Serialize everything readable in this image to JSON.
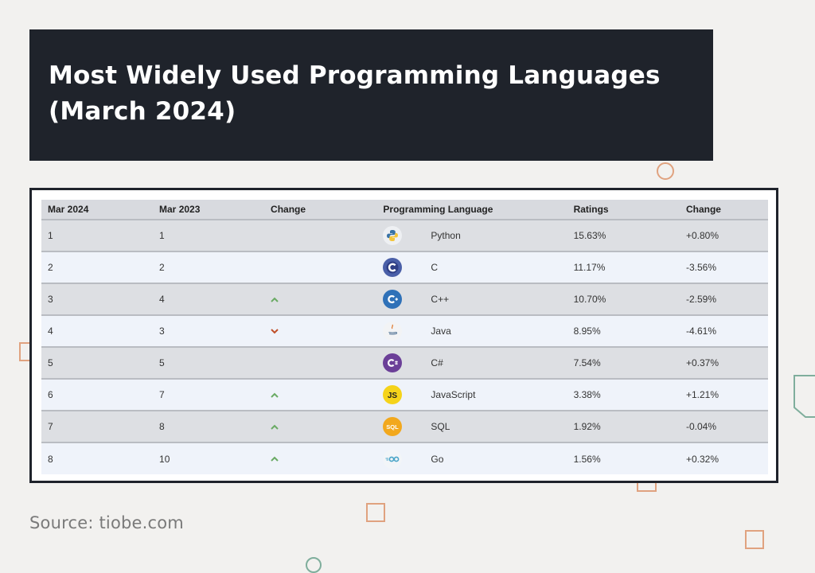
{
  "title": {
    "line1": "Most Widely Used Programming Languages",
    "line2": "(March 2024)"
  },
  "table": {
    "headers": [
      "Mar 2024",
      "Mar 2023",
      "Change",
      "Programming Language",
      "Ratings",
      "Change"
    ],
    "rows": [
      {
        "rank_2024": "1",
        "rank_2023": "1",
        "trend": "none",
        "icon": "python-icon",
        "language": "Python",
        "rating": "15.63%",
        "change": "+0.80%"
      },
      {
        "rank_2024": "2",
        "rank_2023": "2",
        "trend": "none",
        "icon": "c-icon",
        "language": "C",
        "rating": "11.17%",
        "change": "-3.56%"
      },
      {
        "rank_2024": "3",
        "rank_2023": "4",
        "trend": "up",
        "icon": "cpp-icon",
        "language": "C++",
        "rating": "10.70%",
        "change": "-2.59%"
      },
      {
        "rank_2024": "4",
        "rank_2023": "3",
        "trend": "down",
        "icon": "java-icon",
        "language": "Java",
        "rating": "8.95%",
        "change": "-4.61%"
      },
      {
        "rank_2024": "5",
        "rank_2023": "5",
        "trend": "none",
        "icon": "csharp-icon",
        "language": "C#",
        "rating": "7.54%",
        "change": "+0.37%"
      },
      {
        "rank_2024": "6",
        "rank_2023": "7",
        "trend": "up",
        "icon": "javascript-icon",
        "language": "JavaScript",
        "rating": "3.38%",
        "change": "+1.21%"
      },
      {
        "rank_2024": "7",
        "rank_2023": "8",
        "trend": "up",
        "icon": "sql-icon",
        "language": "SQL",
        "rating": "1.92%",
        "change": "-0.04%"
      },
      {
        "rank_2024": "8",
        "rank_2023": "10",
        "trend": "up",
        "icon": "go-icon",
        "language": "Go",
        "rating": "1.56%",
        "change": "+0.32%"
      }
    ]
  },
  "source": "Source: tiobe.com",
  "colors": {
    "banner": "#1f232b",
    "trend_up": "#6aaa64",
    "trend_down": "#c0502a",
    "accent_shapes": "#e0a27f"
  }
}
